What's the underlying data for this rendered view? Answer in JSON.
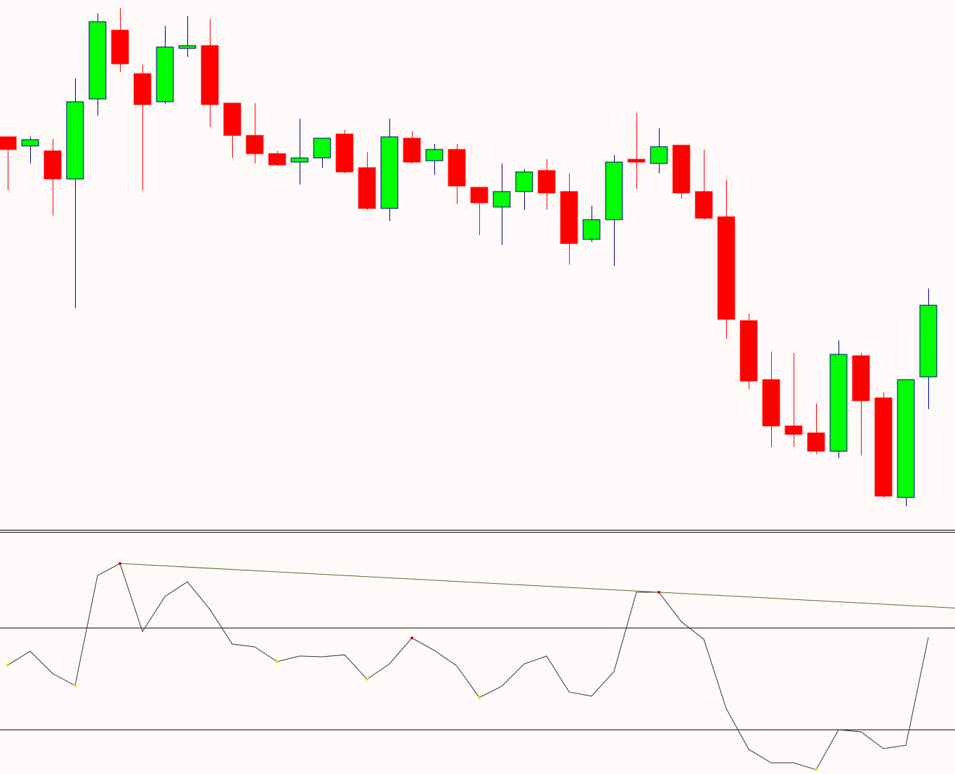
{
  "chart_data": [
    {
      "type": "candlestick",
      "ylim": [
        -5,
        750
      ],
      "up_color": "#00ff00",
      "up_edge": "#000080",
      "down_color": "#ff0000",
      "down_edge": "#ff0000",
      "candles": [
        [
          555,
          555,
          479,
          537
        ],
        [
          542,
          555,
          517,
          551
        ],
        [
          535,
          552,
          443,
          495
        ],
        [
          495,
          638,
          311,
          605
        ],
        [
          609,
          731,
          585,
          719
        ],
        [
          707,
          739,
          647,
          659
        ],
        [
          645,
          658,
          479,
          601
        ],
        [
          605,
          713,
          602,
          683
        ],
        [
          681,
          727,
          669,
          685
        ],
        [
          685,
          723,
          569,
          601
        ],
        [
          603,
          603,
          525,
          557
        ],
        [
          557,
          603,
          517,
          531
        ],
        [
          531,
          535,
          513,
          515
        ],
        [
          519,
          581,
          487,
          525
        ],
        [
          525,
          553,
          511,
          553
        ],
        [
          559,
          565,
          503,
          505
        ],
        [
          511,
          533,
          451,
          453
        ],
        [
          453,
          581,
          435,
          555
        ],
        [
          553,
          563,
          517,
          519
        ],
        [
          521,
          545,
          501,
          537
        ],
        [
          537,
          545,
          459,
          485
        ],
        [
          483,
          483,
          415,
          461
        ],
        [
          455,
          517,
          401,
          477
        ],
        [
          477,
          509,
          451,
          505
        ],
        [
          507,
          523,
          451,
          475
        ],
        [
          477,
          503,
          373,
          403
        ],
        [
          409,
          457,
          405,
          437
        ],
        [
          437,
          529,
          371,
          519
        ],
        [
          523,
          589,
          481,
          519
        ],
        [
          517,
          567,
          503,
          541
        ],
        [
          543,
          543,
          467,
          475
        ],
        [
          477,
          537,
          437,
          439
        ],
        [
          441,
          493,
          267,
          295
        ],
        [
          293,
          303,
          195,
          207
        ],
        [
          209,
          249,
          113,
          143
        ],
        [
          143,
          247,
          113,
          131
        ],
        [
          133,
          175,
          103,
          107
        ],
        [
          107,
          265,
          97,
          245
        ],
        [
          243,
          247,
          101,
          179
        ],
        [
          183,
          191,
          41,
          43
        ],
        [
          41,
          209,
          29,
          209
        ],
        [
          213,
          339,
          167,
          315
        ]
      ]
    },
    {
      "type": "line",
      "ylim": [
        12.6,
        108.1
      ],
      "color": "#333333",
      "levels": [
        70,
        30
      ],
      "level_color": "#000000",
      "values": [
        55.4,
        60.9,
        52.1,
        47.4,
        90.7,
        95.4,
        68.6,
        82.4,
        88.2,
        77.4,
        63.7,
        62.6,
        56.8,
        59.0,
        58.7,
        59.5,
        49.9,
        55.9,
        66.1,
        61.2,
        55.1,
        42.7,
        47.1,
        55.9,
        59.0,
        44.9,
        43.2,
        52.9,
        84.1,
        84.1,
        72.5,
        65.6,
        38.3,
        22.3,
        17.0,
        17.0,
        14.3,
        30,
        29.2,
        22.6,
        23.9,
        66.4
      ],
      "highlights": [
        {
          "index": 0,
          "color": "#ffcc00"
        },
        {
          "index": 3,
          "color": "#ffcc00"
        },
        {
          "index": 5,
          "color": "#cc0000"
        },
        {
          "index": 12,
          "color": "#ffcc00"
        },
        {
          "index": 16,
          "color": "#ffcc00"
        },
        {
          "index": 18,
          "color": "#cc0000"
        },
        {
          "index": 21,
          "color": "#ffcc00"
        },
        {
          "index": 29,
          "color": "#cc0000"
        },
        {
          "index": 36,
          "color": "#ffcc00"
        }
      ],
      "trendline": {
        "from": 5,
        "to": 29,
        "color": "#556b2f"
      }
    }
  ]
}
